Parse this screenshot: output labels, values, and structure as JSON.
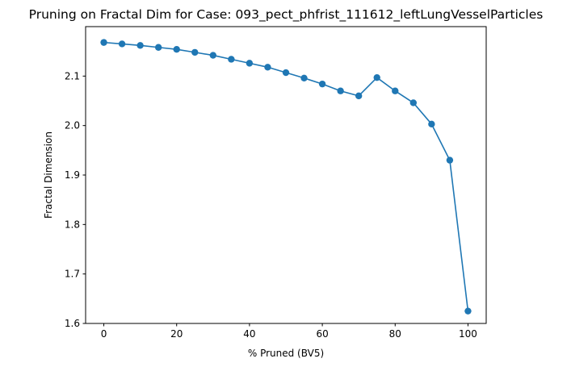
{
  "chart_data": {
    "type": "line",
    "title": "Pruning on Fractal Dim for Case: 093_pect_phfrist_111612_leftLungVesselParticles",
    "xlabel": "% Pruned (BV5)",
    "ylabel": "Fractal Dimension",
    "xlim": [
      -5,
      105
    ],
    "ylim": [
      1.6,
      2.2
    ],
    "xticks": [
      "0",
      "20",
      "40",
      "60",
      "80",
      "100"
    ],
    "yticks": [
      "1.6",
      "1.7",
      "1.8",
      "1.9",
      "2.0",
      "2.1"
    ],
    "grid": false,
    "legend": "none",
    "series": [
      {
        "color": "#1f77b4",
        "marker": "circle",
        "x": [
          0,
          5,
          10,
          15,
          20,
          25,
          30,
          35,
          40,
          45,
          50,
          55,
          60,
          65,
          70,
          75,
          80,
          85,
          90,
          95,
          100
        ],
        "y": [
          2.168,
          2.165,
          2.162,
          2.158,
          2.154,
          2.148,
          2.142,
          2.134,
          2.126,
          2.118,
          2.107,
          2.096,
          2.084,
          2.07,
          2.06,
          2.097,
          2.07,
          2.046,
          2.003,
          1.93,
          1.625
        ]
      }
    ]
  }
}
